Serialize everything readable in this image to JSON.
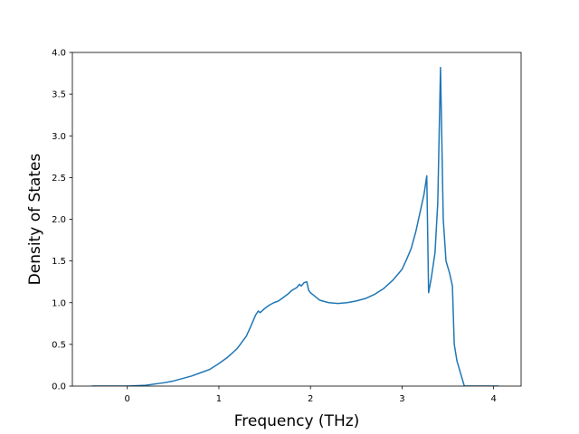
{
  "chart_data": {
    "type": "line",
    "title": "",
    "xlabel": "Frequency (THz)",
    "ylabel": "Density of States",
    "xlim": [
      -0.6,
      4.3
    ],
    "ylim": [
      0.0,
      4.0
    ],
    "grid": false,
    "x_ticks": [
      0,
      1,
      2,
      3,
      4
    ],
    "x_tick_labels": [
      "0",
      "1",
      "2",
      "3",
      "4"
    ],
    "y_ticks": [
      0.0,
      0.5,
      1.0,
      1.5,
      2.0,
      2.5,
      3.0,
      3.5,
      4.0
    ],
    "y_tick_labels": [
      "0.0",
      "0.5",
      "1.0",
      "1.5",
      "2.0",
      "2.5",
      "3.0",
      "3.5",
      "4.0"
    ],
    "series": [
      {
        "color": "#1f77b4",
        "x": [
          -0.38,
          0.0,
          0.2,
          0.4,
          0.5,
          0.6,
          0.7,
          0.8,
          0.9,
          1.0,
          1.1,
          1.2,
          1.3,
          1.35,
          1.4,
          1.43,
          1.45,
          1.5,
          1.55,
          1.6,
          1.65,
          1.7,
          1.75,
          1.8,
          1.85,
          1.88,
          1.9,
          1.93,
          1.96,
          1.98,
          2.0,
          2.1,
          2.2,
          2.3,
          2.4,
          2.5,
          2.6,
          2.7,
          2.8,
          2.9,
          3.0,
          3.05,
          3.1,
          3.15,
          3.2,
          3.24,
          3.27,
          3.29,
          3.32,
          3.36,
          3.39,
          3.42,
          3.45,
          3.48,
          3.52,
          3.55,
          3.57,
          3.6,
          3.64,
          3.68,
          3.8,
          4.05
        ],
        "y": [
          0.0,
          0.0,
          0.01,
          0.04,
          0.06,
          0.09,
          0.12,
          0.16,
          0.2,
          0.27,
          0.35,
          0.45,
          0.6,
          0.72,
          0.85,
          0.9,
          0.88,
          0.93,
          0.97,
          1.0,
          1.02,
          1.06,
          1.1,
          1.15,
          1.18,
          1.22,
          1.2,
          1.24,
          1.25,
          1.15,
          1.12,
          1.03,
          1.0,
          0.99,
          1.0,
          1.02,
          1.05,
          1.1,
          1.17,
          1.27,
          1.4,
          1.52,
          1.65,
          1.85,
          2.1,
          2.3,
          2.52,
          1.12,
          1.3,
          1.6,
          2.2,
          3.82,
          2.0,
          1.5,
          1.35,
          1.2,
          0.5,
          0.3,
          0.15,
          0.0,
          0.0,
          0.0
        ]
      }
    ]
  }
}
